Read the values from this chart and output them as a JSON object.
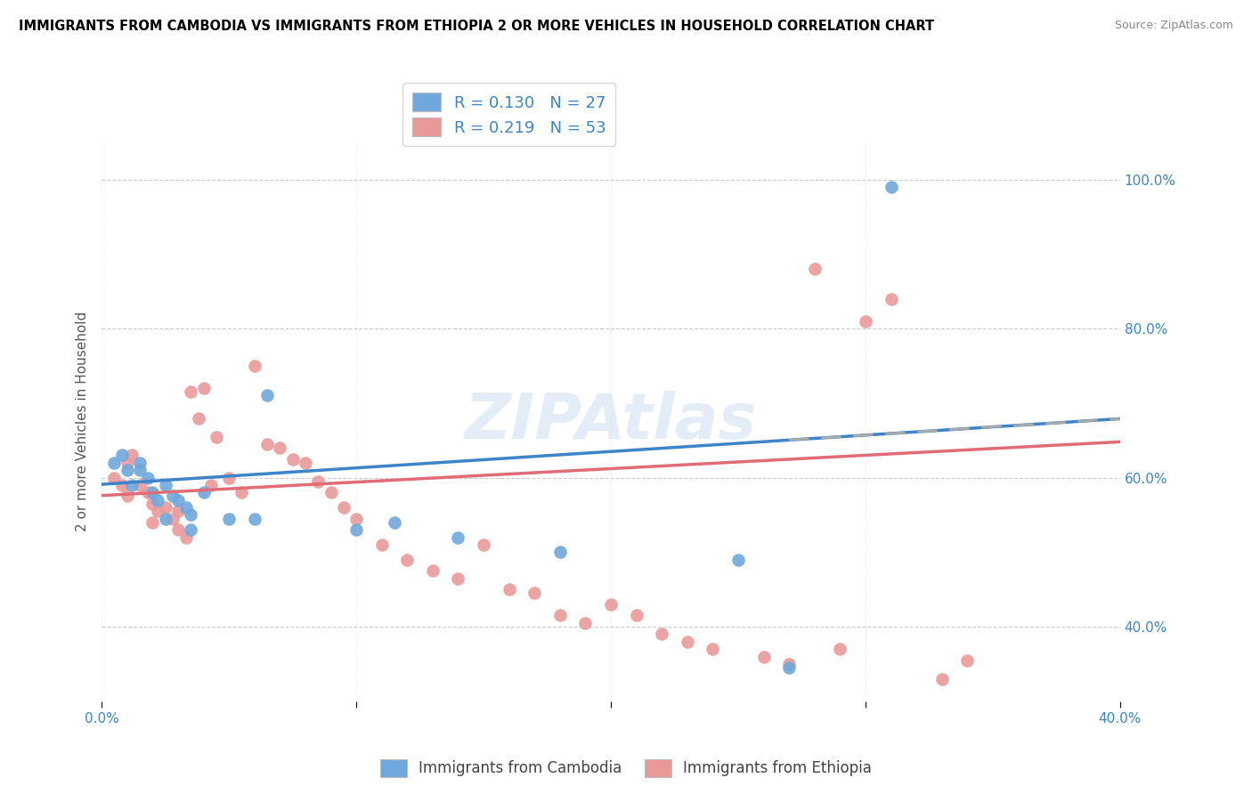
{
  "title": "IMMIGRANTS FROM CAMBODIA VS IMMIGRANTS FROM ETHIOPIA 2 OR MORE VEHICLES IN HOUSEHOLD CORRELATION CHART",
  "source": "Source: ZipAtlas.com",
  "ylabel": "2 or more Vehicles in Household",
  "xlim": [
    0.0,
    0.4
  ],
  "ylim": [
    0.3,
    1.05
  ],
  "xticks": [
    0.0,
    0.1,
    0.2,
    0.3,
    0.4
  ],
  "xtick_labels": [
    "0.0%",
    "",
    "",
    "",
    "40.0%"
  ],
  "ytick_labels": [
    "40.0%",
    "60.0%",
    "80.0%",
    "100.0%"
  ],
  "yticks": [
    0.4,
    0.6,
    0.8,
    1.0
  ],
  "cambodia_color": "#6fa8dc",
  "ethiopia_color": "#ea9999",
  "cambodia_R": 0.13,
  "cambodia_N": 27,
  "ethiopia_R": 0.219,
  "ethiopia_N": 53,
  "cambodia_line_color": "#3d85c8",
  "ethiopia_line_color": "#e06c75",
  "watermark": "ZIPAtlas",
  "cambodia_x": [
    0.005,
    0.008,
    0.01,
    0.012,
    0.015,
    0.018,
    0.02,
    0.022,
    0.025,
    0.028,
    0.03,
    0.033,
    0.035,
    0.04,
    0.05,
    0.06,
    0.065,
    0.1,
    0.115,
    0.14,
    0.18,
    0.25,
    0.27,
    0.31,
    0.015,
    0.025,
    0.035
  ],
  "cambodia_y": [
    0.62,
    0.63,
    0.61,
    0.59,
    0.62,
    0.6,
    0.58,
    0.57,
    0.59,
    0.575,
    0.57,
    0.56,
    0.55,
    0.58,
    0.545,
    0.545,
    0.71,
    0.53,
    0.54,
    0.52,
    0.5,
    0.49,
    0.345,
    0.99,
    0.61,
    0.545,
    0.53
  ],
  "ethiopia_x": [
    0.005,
    0.008,
    0.01,
    0.012,
    0.015,
    0.018,
    0.02,
    0.022,
    0.025,
    0.028,
    0.03,
    0.033,
    0.035,
    0.038,
    0.04,
    0.043,
    0.045,
    0.05,
    0.055,
    0.06,
    0.065,
    0.07,
    0.075,
    0.08,
    0.085,
    0.09,
    0.095,
    0.1,
    0.11,
    0.12,
    0.13,
    0.14,
    0.15,
    0.16,
    0.17,
    0.18,
    0.19,
    0.2,
    0.21,
    0.22,
    0.23,
    0.24,
    0.26,
    0.27,
    0.28,
    0.29,
    0.3,
    0.31,
    0.33,
    0.34,
    0.01,
    0.02,
    0.03
  ],
  "ethiopia_y": [
    0.6,
    0.59,
    0.62,
    0.63,
    0.59,
    0.58,
    0.565,
    0.555,
    0.56,
    0.545,
    0.53,
    0.52,
    0.715,
    0.68,
    0.72,
    0.59,
    0.655,
    0.6,
    0.58,
    0.75,
    0.645,
    0.64,
    0.625,
    0.62,
    0.595,
    0.58,
    0.56,
    0.545,
    0.51,
    0.49,
    0.475,
    0.465,
    0.51,
    0.45,
    0.445,
    0.415,
    0.405,
    0.43,
    0.415,
    0.39,
    0.38,
    0.37,
    0.36,
    0.35,
    0.88,
    0.37,
    0.81,
    0.84,
    0.33,
    0.355,
    0.575,
    0.54,
    0.555
  ]
}
